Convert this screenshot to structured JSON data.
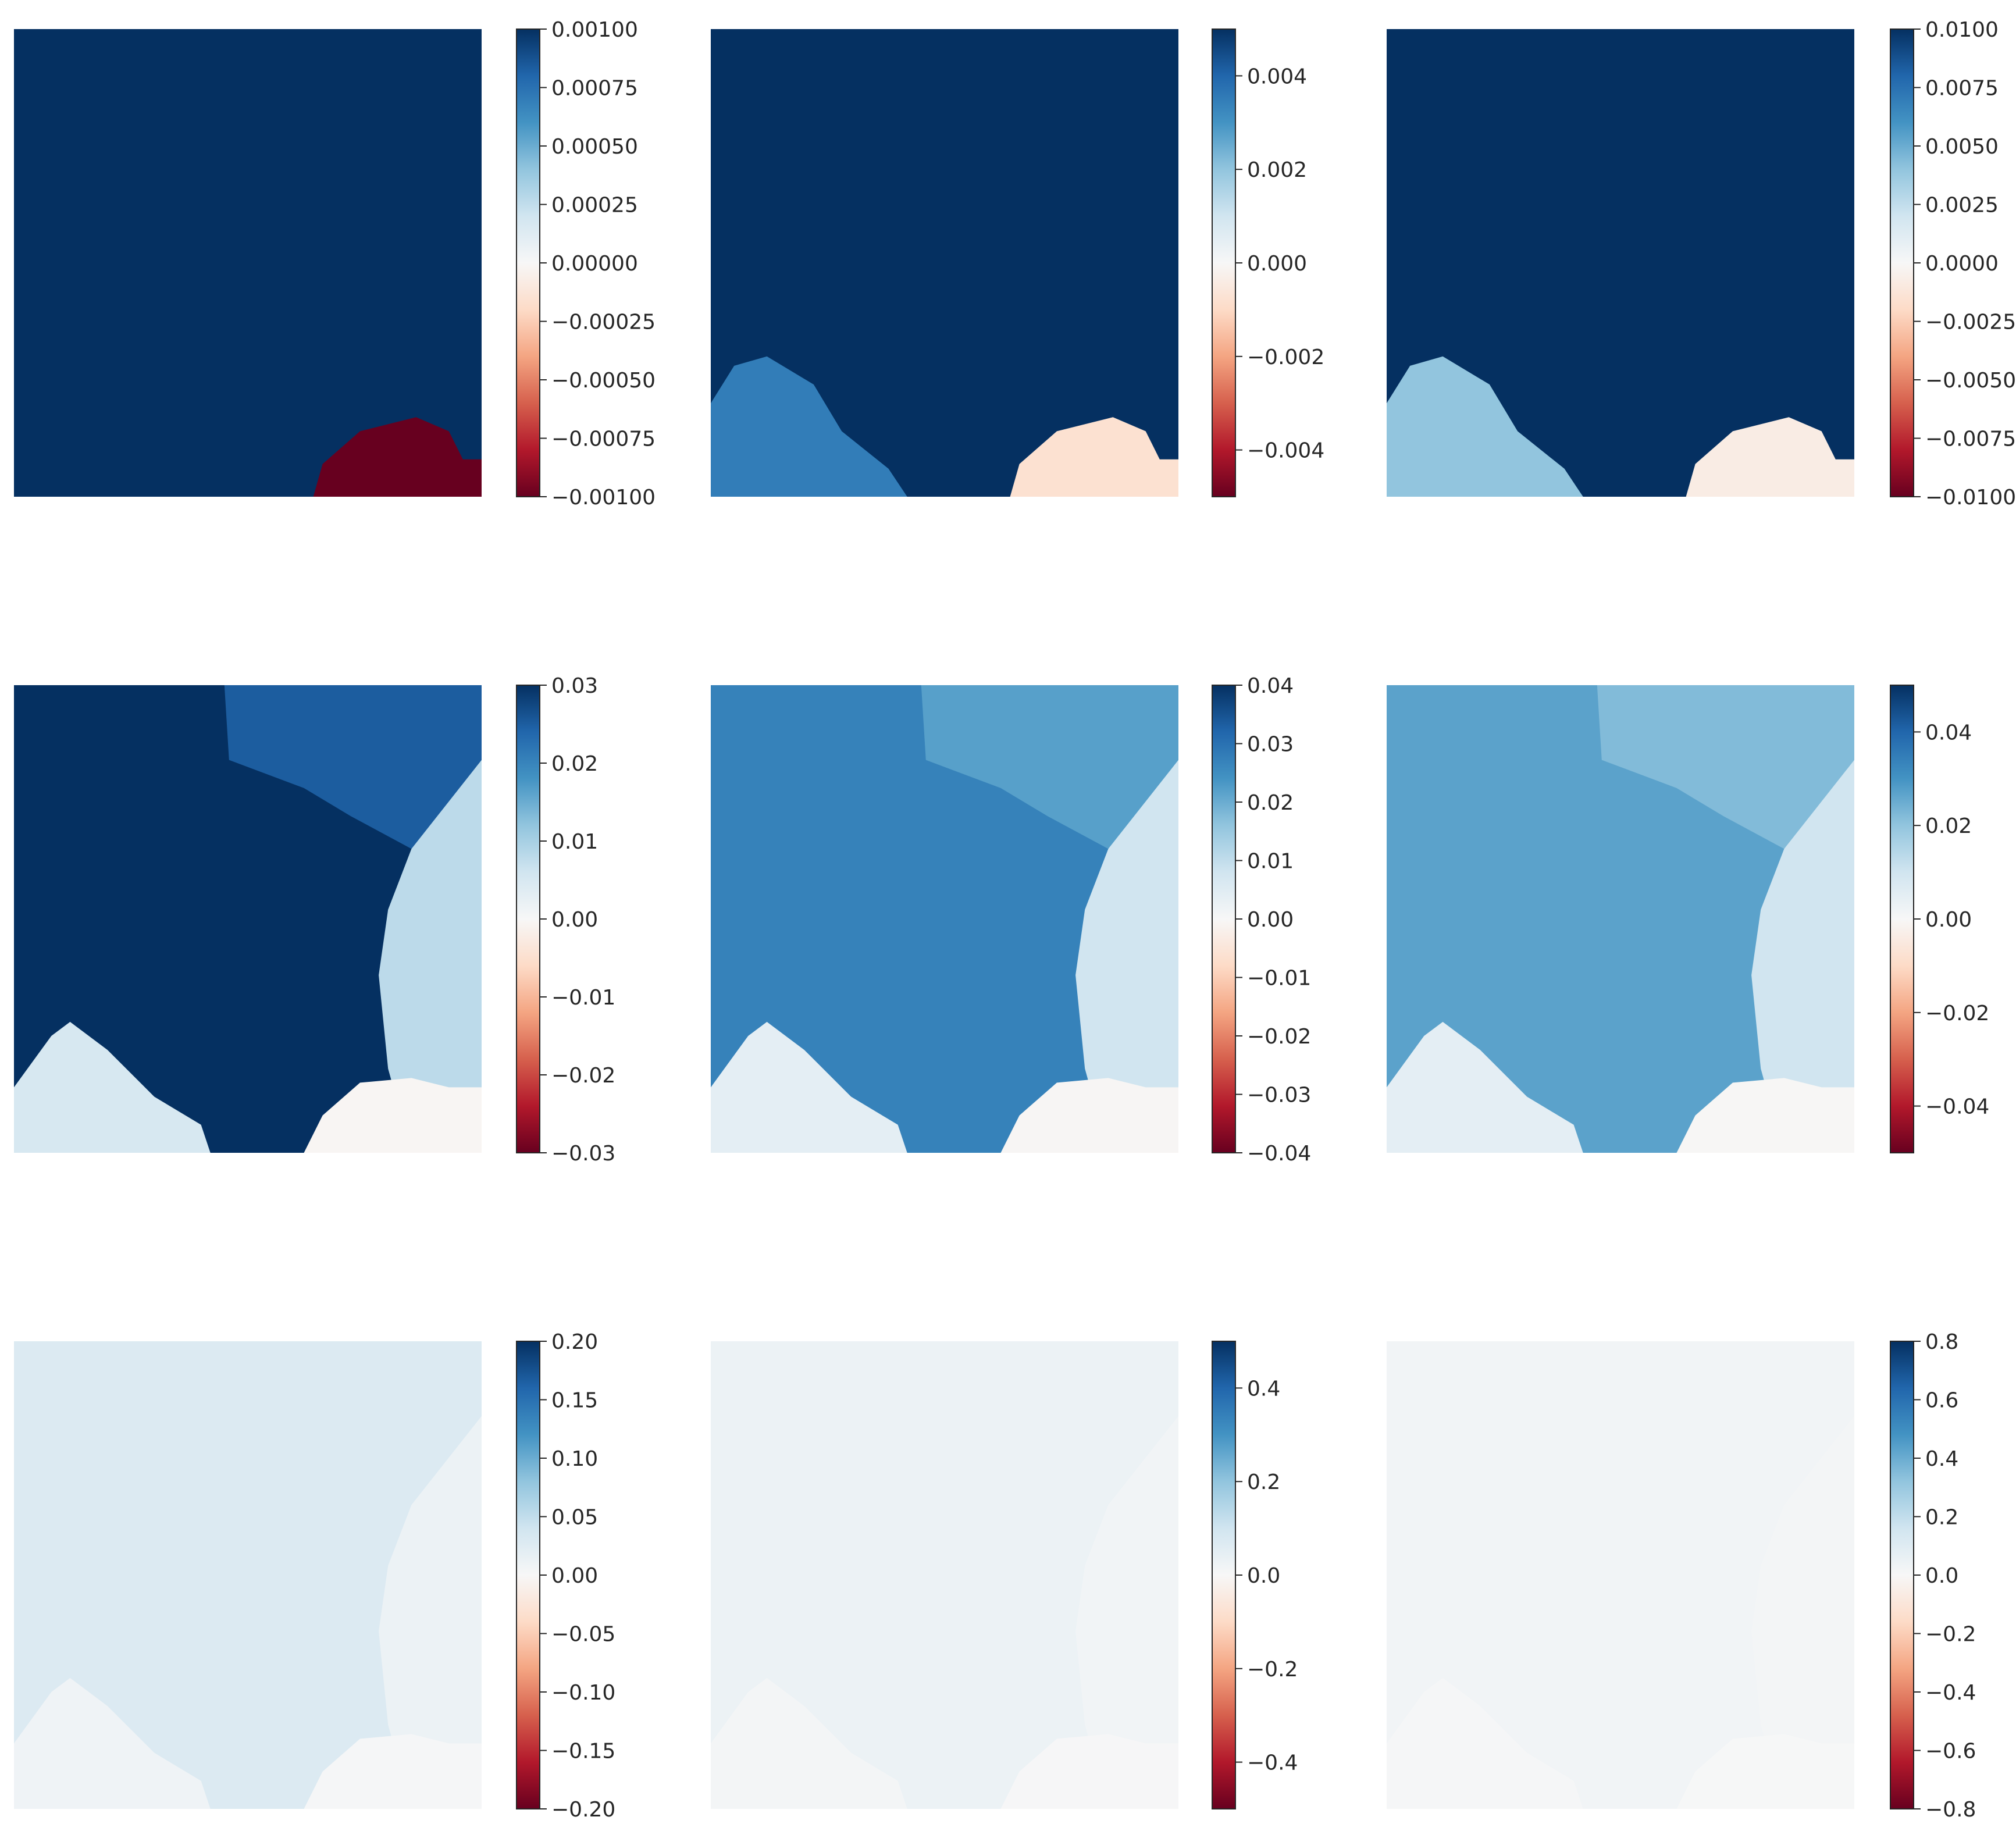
{
  "chart_data": [
    {
      "type": "heatmap",
      "row": 0,
      "col": 0,
      "colormap": "RdBu",
      "vmin": -0.001,
      "vmax": 0.001,
      "colorbar_ticks": [
        {
          "value": 0.001,
          "label": "0.00100"
        },
        {
          "value": 0.00075,
          "label": "0.00075"
        },
        {
          "value": 0.0005,
          "label": "0.00050"
        },
        {
          "value": 0.00025,
          "label": "0.00025"
        },
        {
          "value": 0.0,
          "label": "0.00000"
        },
        {
          "value": -0.00025,
          "label": "−0.00025"
        },
        {
          "value": -0.0005,
          "label": "−0.00050"
        },
        {
          "value": -0.00075,
          "label": "−0.00075"
        },
        {
          "value": -0.001,
          "label": "−0.00100"
        }
      ],
      "field_levels": {
        "background": 0.001,
        "low_region": -0.001
      }
    },
    {
      "type": "heatmap",
      "row": 0,
      "col": 1,
      "colormap": "RdBu",
      "vmin": -0.005,
      "vmax": 0.005,
      "colorbar_ticks": [
        {
          "value": 0.004,
          "label": "0.004"
        },
        {
          "value": 0.002,
          "label": "0.002"
        },
        {
          "value": 0.0,
          "label": "0.000"
        },
        {
          "value": -0.002,
          "label": "−0.002"
        },
        {
          "value": -0.004,
          "label": "−0.004"
        }
      ],
      "field_levels": {
        "background": 0.005,
        "left_lobe": 0.0035,
        "low_region": -0.0008
      }
    },
    {
      "type": "heatmap",
      "row": 0,
      "col": 2,
      "colormap": "RdBu",
      "vmin": -0.01,
      "vmax": 0.01,
      "colorbar_ticks": [
        {
          "value": 0.01,
          "label": "0.0100"
        },
        {
          "value": 0.0075,
          "label": "0.0075"
        },
        {
          "value": 0.005,
          "label": "0.0050"
        },
        {
          "value": 0.0025,
          "label": "0.0025"
        },
        {
          "value": 0.0,
          "label": "0.0000"
        },
        {
          "value": -0.0025,
          "label": "−0.0025"
        },
        {
          "value": -0.005,
          "label": "−0.0050"
        },
        {
          "value": -0.0075,
          "label": "−0.0075"
        },
        {
          "value": -0.01,
          "label": "−0.0100"
        }
      ],
      "field_levels": {
        "background": 0.01,
        "left_lobe": 0.004,
        "low_region": -0.0008
      }
    },
    {
      "type": "heatmap",
      "row": 1,
      "col": 0,
      "colormap": "RdBu",
      "vmin": -0.03,
      "vmax": 0.03,
      "colorbar_ticks": [
        {
          "value": 0.03,
          "label": "0.03"
        },
        {
          "value": 0.02,
          "label": "0.02"
        },
        {
          "value": 0.01,
          "label": "0.01"
        },
        {
          "value": 0.0,
          "label": "0.00"
        },
        {
          "value": -0.01,
          "label": "−0.01"
        },
        {
          "value": -0.02,
          "label": "−0.02"
        },
        {
          "value": -0.03,
          "label": "−0.03"
        }
      ],
      "field_levels": {
        "background": 0.03,
        "top_right": 0.025,
        "right_region": 0.008,
        "bottom_left": 0.005,
        "bottom_right": -0.0005
      }
    },
    {
      "type": "heatmap",
      "row": 1,
      "col": 1,
      "colormap": "RdBu",
      "vmin": -0.04,
      "vmax": 0.04,
      "colorbar_ticks": [
        {
          "value": 0.04,
          "label": "0.04"
        },
        {
          "value": 0.03,
          "label": "0.03"
        },
        {
          "value": 0.02,
          "label": "0.02"
        },
        {
          "value": 0.01,
          "label": "0.01"
        },
        {
          "value": 0.0,
          "label": "0.00"
        },
        {
          "value": -0.01,
          "label": "−0.01"
        },
        {
          "value": -0.02,
          "label": "−0.02"
        },
        {
          "value": -0.03,
          "label": "−0.03"
        },
        {
          "value": -0.04,
          "label": "−0.04"
        }
      ],
      "field_levels": {
        "background": 0.027,
        "top_right": 0.022,
        "right_region": 0.008,
        "bottom_left": 0.004,
        "bottom_right": -0.0005
      }
    },
    {
      "type": "heatmap",
      "row": 1,
      "col": 2,
      "colormap": "RdBu",
      "vmin": -0.05,
      "vmax": 0.05,
      "colorbar_ticks": [
        {
          "value": 0.04,
          "label": "0.04"
        },
        {
          "value": 0.02,
          "label": "0.02"
        },
        {
          "value": 0.0,
          "label": "0.00"
        },
        {
          "value": -0.02,
          "label": "−0.02"
        },
        {
          "value": -0.04,
          "label": "−0.04"
        }
      ],
      "field_levels": {
        "background": 0.027,
        "top_right": 0.022,
        "right_region": 0.01,
        "bottom_left": 0.005,
        "bottom_right": -0.0005
      }
    },
    {
      "type": "heatmap",
      "row": 2,
      "col": 0,
      "colormap": "RdBu",
      "vmin": -0.2,
      "vmax": 0.2,
      "colorbar_ticks": [
        {
          "value": 0.2,
          "label": "0.20"
        },
        {
          "value": 0.15,
          "label": "0.15"
        },
        {
          "value": 0.1,
          "label": "0.10"
        },
        {
          "value": 0.05,
          "label": "0.05"
        },
        {
          "value": 0.0,
          "label": "0.00"
        },
        {
          "value": -0.05,
          "label": "−0.05"
        },
        {
          "value": -0.1,
          "label": "−0.10"
        },
        {
          "value": -0.15,
          "label": "−0.15"
        },
        {
          "value": -0.2,
          "label": "−0.20"
        }
      ],
      "field_levels": {
        "background": 0.028,
        "right_region": 0.012,
        "bottom_left": 0.008,
        "bottom_right": 0.002
      }
    },
    {
      "type": "heatmap",
      "row": 2,
      "col": 1,
      "colormap": "RdBu",
      "vmin": -0.5,
      "vmax": 0.5,
      "colorbar_ticks": [
        {
          "value": 0.4,
          "label": "0.4"
        },
        {
          "value": 0.2,
          "label": "0.2"
        },
        {
          "value": 0.0,
          "label": "0.0"
        },
        {
          "value": -0.2,
          "label": "−0.2"
        },
        {
          "value": -0.4,
          "label": "−0.4"
        }
      ],
      "field_levels": {
        "background": 0.028,
        "right_region": 0.015,
        "bottom_left": 0.01,
        "bottom_right": 0.003
      }
    },
    {
      "type": "heatmap",
      "row": 2,
      "col": 2,
      "colormap": "RdBu",
      "vmin": -0.8,
      "vmax": 0.8,
      "colorbar_ticks": [
        {
          "value": 0.8,
          "label": "0.8"
        },
        {
          "value": 0.6,
          "label": "0.6"
        },
        {
          "value": 0.4,
          "label": "0.4"
        },
        {
          "value": 0.2,
          "label": "0.2"
        },
        {
          "value": 0.0,
          "label": "0.0"
        },
        {
          "value": -0.2,
          "label": "−0.2"
        },
        {
          "value": -0.4,
          "label": "−0.4"
        },
        {
          "value": -0.6,
          "label": "−0.6"
        },
        {
          "value": -0.8,
          "label": "−0.8"
        }
      ],
      "field_levels": {
        "background": 0.025,
        "right_region": 0.015,
        "bottom_left": 0.01,
        "bottom_right": 0.003
      }
    }
  ]
}
